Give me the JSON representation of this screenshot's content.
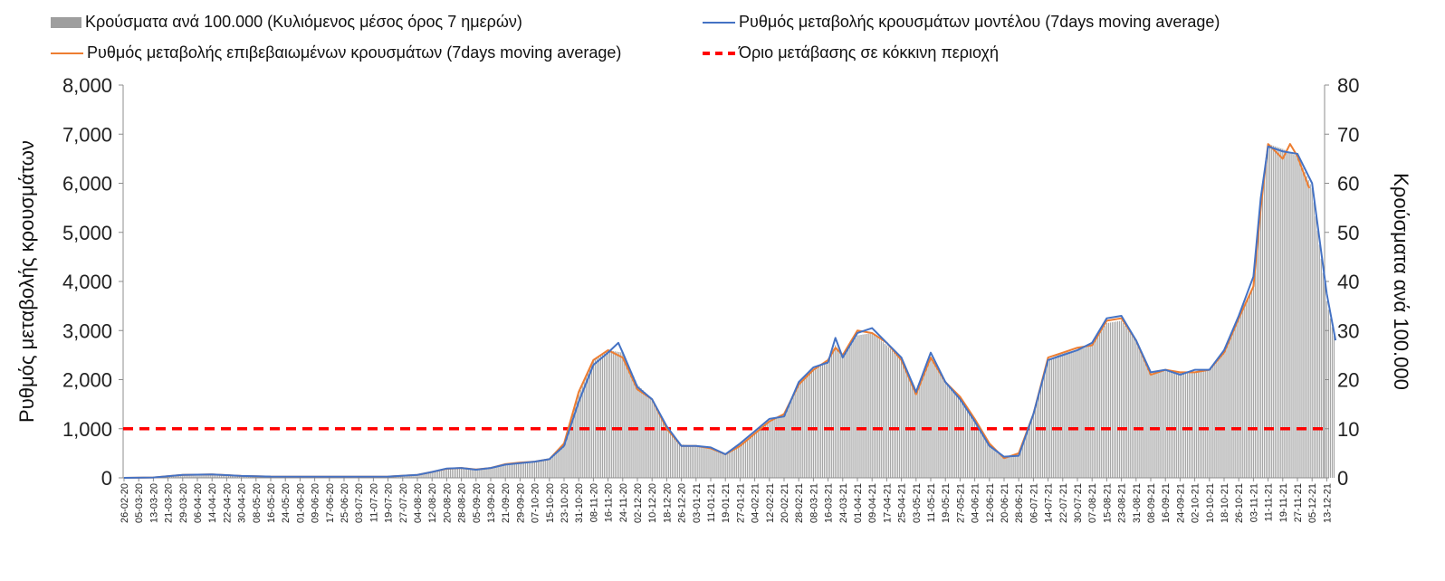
{
  "chart_data": {
    "type": "bar+line",
    "legend": [
      {
        "label": "Κρούσματα ανά 100.000  (Κυλιόμενος μέσος όρος 7 ημερών)",
        "style": "bar",
        "color": "#9e9e9e"
      },
      {
        "label": "Ρυθμός μεταβολής κρουσμάτων μοντέλου (7days moving average)",
        "style": "line",
        "color": "#4472c4"
      },
      {
        "label": "Ρυθμός μεταβολής επιβεβαιωμένων κρουσμάτων (7days moving average)",
        "style": "line",
        "color": "#ed7d31"
      },
      {
        "label": "Όριο μετάβασης σε κόκκινη περιοχή",
        "style": "dashed",
        "color": "#ff0000"
      }
    ],
    "ylabel_left": "Ρυθμός μεταβολής κρουσμάτων",
    "ylabel_right": "Κρούσματα ανά 100.000",
    "ylim_left": [
      0,
      8000
    ],
    "ylim_right": [
      0,
      80
    ],
    "yticks_left": [
      "0",
      "1,000",
      "2,000",
      "3,000",
      "4,000",
      "5,000",
      "6,000",
      "7,000",
      "8,000"
    ],
    "yticks_right": [
      "0",
      "10",
      "20",
      "30",
      "40",
      "50",
      "60",
      "70",
      "80"
    ],
    "threshold": 1000,
    "x_tick_labels": [
      "26-02-20",
      "05-03-20",
      "13-03-20",
      "21-03-20",
      "29-03-20",
      "06-04-20",
      "14-04-20",
      "22-04-20",
      "30-04-20",
      "08-05-20",
      "16-05-20",
      "24-05-20",
      "01-06-20",
      "09-06-20",
      "17-06-20",
      "25-06-20",
      "03-07-20",
      "11-07-20",
      "19-07-20",
      "27-07-20",
      "04-08-20",
      "12-08-20",
      "20-08-20",
      "28-08-20",
      "05-09-20",
      "13-09-20",
      "21-09-20",
      "29-09-20",
      "07-10-20",
      "15-10-20",
      "23-10-20",
      "31-10-20",
      "08-11-20",
      "16-11-20",
      "24-11-20",
      "02-12-20",
      "10-12-20",
      "18-12-20",
      "26-12-20",
      "03-01-21",
      "11-01-21",
      "19-01-21",
      "27-01-21",
      "04-02-21",
      "12-02-21",
      "20-02-21",
      "28-02-21",
      "08-03-21",
      "16-03-21",
      "24-03-21",
      "01-04-21",
      "09-04-21",
      "17-04-21",
      "25-04-21",
      "03-05-21",
      "11-05-21",
      "19-05-21",
      "27-05-21",
      "04-06-21",
      "12-06-21",
      "20-06-21",
      "28-06-21",
      "06-07-21",
      "14-07-21",
      "22-07-21",
      "30-07-21",
      "07-08-21",
      "15-08-21",
      "23-08-21",
      "31-08-21",
      "08-09-21",
      "16-09-21",
      "24-09-21",
      "02-10-21",
      "10-10-21",
      "18-10-21",
      "26-10-21",
      "03-11-21",
      "11-11-21",
      "19-11-21",
      "27-11-21",
      "05-12-21",
      "13-12-21"
    ],
    "keyframes_note": "values estimated per tick label (index into x_tick_labels); left-axis units",
    "cases_series": [
      [
        0,
        0
      ],
      [
        2,
        8
      ],
      [
        4,
        60
      ],
      [
        6,
        70
      ],
      [
        8,
        40
      ],
      [
        10,
        25
      ],
      [
        14,
        22
      ],
      [
        18,
        25
      ],
      [
        20,
        60
      ],
      [
        21,
        120
      ],
      [
        22,
        185
      ],
      [
        23,
        200
      ],
      [
        24,
        175
      ],
      [
        25,
        200
      ],
      [
        26,
        280
      ],
      [
        27,
        310
      ],
      [
        28,
        330
      ],
      [
        29,
        380
      ],
      [
        30,
        700
      ],
      [
        31,
        1700
      ],
      [
        32,
        2400
      ],
      [
        33,
        2600
      ],
      [
        34,
        2550
      ],
      [
        35,
        1900
      ],
      [
        36,
        1600
      ],
      [
        37,
        1050
      ],
      [
        38,
        680
      ],
      [
        39,
        650
      ],
      [
        40,
        600
      ],
      [
        41,
        480
      ],
      [
        42,
        680
      ],
      [
        43,
        900
      ],
      [
        44,
        1150
      ],
      [
        45,
        1300
      ],
      [
        46,
        1900
      ],
      [
        47,
        2200
      ],
      [
        48,
        2400
      ],
      [
        48.5,
        2700
      ],
      [
        49,
        2500
      ],
      [
        50,
        2900
      ],
      [
        51,
        2950
      ],
      [
        52,
        2700
      ],
      [
        53,
        2400
      ],
      [
        54,
        1800
      ],
      [
        55,
        2450
      ],
      [
        56,
        1950
      ],
      [
        57,
        1650
      ],
      [
        58,
        1200
      ],
      [
        59,
        700
      ],
      [
        60,
        400
      ],
      [
        61,
        500
      ],
      [
        62,
        1300
      ],
      [
        63,
        2400
      ],
      [
        64,
        2550
      ],
      [
        65,
        2600
      ],
      [
        66,
        2700
      ],
      [
        67,
        3150
      ],
      [
        68,
        3200
      ],
      [
        69,
        2800
      ],
      [
        70,
        2100
      ],
      [
        71,
        2200
      ],
      [
        72,
        2150
      ],
      [
        73,
        2150
      ],
      [
        74,
        2200
      ],
      [
        75,
        2600
      ],
      [
        76,
        3300
      ],
      [
        77,
        3900
      ],
      [
        77.5,
        5600
      ],
      [
        78,
        6800
      ],
      [
        79,
        6700
      ],
      [
        80,
        6550
      ],
      [
        81,
        5900
      ],
      [
        82,
        3600
      ],
      [
        82.6,
        2750
      ]
    ],
    "model_series": [
      [
        0,
        0
      ],
      [
        2,
        8
      ],
      [
        4,
        60
      ],
      [
        6,
        70
      ],
      [
        8,
        40
      ],
      [
        10,
        25
      ],
      [
        14,
        22
      ],
      [
        18,
        25
      ],
      [
        20,
        60
      ],
      [
        21,
        120
      ],
      [
        22,
        190
      ],
      [
        23,
        200
      ],
      [
        24,
        165
      ],
      [
        25,
        200
      ],
      [
        26,
        270
      ],
      [
        27,
        300
      ],
      [
        28,
        330
      ],
      [
        29,
        380
      ],
      [
        30,
        650
      ],
      [
        31,
        1550
      ],
      [
        32,
        2300
      ],
      [
        33,
        2550
      ],
      [
        33.7,
        2750
      ],
      [
        34,
        2550
      ],
      [
        35,
        1850
      ],
      [
        36,
        1600
      ],
      [
        37,
        1050
      ],
      [
        38,
        650
      ],
      [
        39,
        650
      ],
      [
        40,
        620
      ],
      [
        41,
        480
      ],
      [
        42,
        700
      ],
      [
        43,
        950
      ],
      [
        44,
        1200
      ],
      [
        45,
        1250
      ],
      [
        46,
        1950
      ],
      [
        47,
        2250
      ],
      [
        48,
        2350
      ],
      [
        48.5,
        2850
      ],
      [
        49,
        2450
      ],
      [
        50,
        2950
      ],
      [
        51,
        3050
      ],
      [
        52,
        2750
      ],
      [
        53,
        2450
      ],
      [
        54,
        1750
      ],
      [
        55,
        2550
      ],
      [
        56,
        1950
      ],
      [
        57,
        1600
      ],
      [
        58,
        1150
      ],
      [
        59,
        650
      ],
      [
        60,
        430
      ],
      [
        61,
        450
      ],
      [
        62,
        1300
      ],
      [
        63,
        2400
      ],
      [
        64,
        2500
      ],
      [
        65,
        2600
      ],
      [
        66,
        2750
      ],
      [
        67,
        3250
      ],
      [
        68,
        3300
      ],
      [
        69,
        2800
      ],
      [
        70,
        2150
      ],
      [
        71,
        2200
      ],
      [
        72,
        2100
      ],
      [
        73,
        2200
      ],
      [
        74,
        2200
      ],
      [
        75,
        2600
      ],
      [
        76,
        3300
      ],
      [
        77,
        4100
      ],
      [
        77.5,
        5700
      ],
      [
        78,
        6750
      ],
      [
        79,
        6650
      ],
      [
        80,
        6600
      ],
      [
        81,
        6000
      ],
      [
        82,
        3750
      ],
      [
        82.6,
        2800
      ]
    ],
    "confirmed_series": [
      [
        0,
        0
      ],
      [
        2,
        8
      ],
      [
        4,
        60
      ],
      [
        6,
        70
      ],
      [
        8,
        40
      ],
      [
        10,
        25
      ],
      [
        14,
        22
      ],
      [
        18,
        25
      ],
      [
        20,
        60
      ],
      [
        21,
        120
      ],
      [
        22,
        185
      ],
      [
        23,
        200
      ],
      [
        24,
        170
      ],
      [
        25,
        200
      ],
      [
        26,
        280
      ],
      [
        27,
        310
      ],
      [
        28,
        330
      ],
      [
        29,
        380
      ],
      [
        30,
        700
      ],
      [
        31,
        1750
      ],
      [
        32,
        2400
      ],
      [
        33,
        2600
      ],
      [
        34,
        2450
      ],
      [
        35,
        1800
      ],
      [
        36,
        1600
      ],
      [
        37,
        1000
      ],
      [
        38,
        650
      ],
      [
        39,
        650
      ],
      [
        40,
        600
      ],
      [
        41,
        480
      ],
      [
        42,
        650
      ],
      [
        43,
        900
      ],
      [
        44,
        1150
      ],
      [
        45,
        1300
      ],
      [
        46,
        1900
      ],
      [
        47,
        2200
      ],
      [
        48,
        2400
      ],
      [
        48.5,
        2650
      ],
      [
        49,
        2500
      ],
      [
        50,
        3000
      ],
      [
        51,
        2950
      ],
      [
        52,
        2750
      ],
      [
        53,
        2400
      ],
      [
        54,
        1700
      ],
      [
        55,
        2450
      ],
      [
        56,
        1950
      ],
      [
        57,
        1650
      ],
      [
        58,
        1200
      ],
      [
        59,
        700
      ],
      [
        60,
        400
      ],
      [
        61,
        500
      ],
      [
        62,
        1300
      ],
      [
        63,
        2450
      ],
      [
        64,
        2550
      ],
      [
        65,
        2650
      ],
      [
        66,
        2700
      ],
      [
        67,
        3200
      ],
      [
        68,
        3250
      ],
      [
        69,
        2800
      ],
      [
        70,
        2100
      ],
      [
        71,
        2200
      ],
      [
        72,
        2150
      ],
      [
        73,
        2150
      ],
      [
        74,
        2200
      ],
      [
        75,
        2550
      ],
      [
        76,
        3250
      ],
      [
        77,
        3900
      ],
      [
        77.5,
        5500
      ],
      [
        78,
        6800
      ],
      [
        79,
        6500
      ],
      [
        79.5,
        6800
      ],
      [
        80,
        6550
      ],
      [
        80.8,
        5900
      ]
    ]
  }
}
